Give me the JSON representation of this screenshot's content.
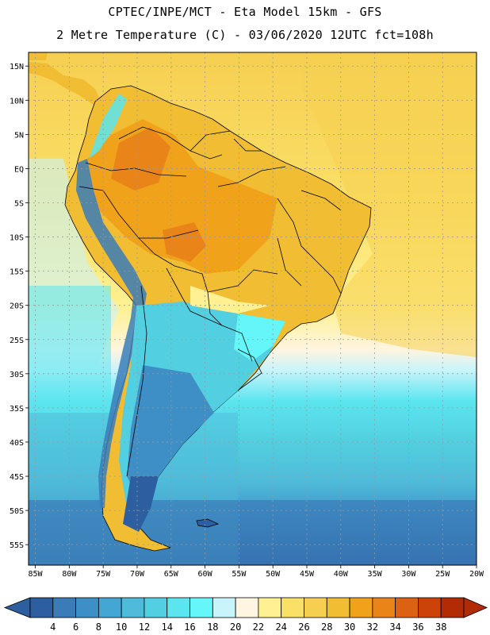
{
  "header": {
    "line1": "CPTEC/INPE/MCT -  Eta Model 15km - GFS",
    "line2": "2 Metre Temperature (C) - 03/06/2020 12UTC fct=108h"
  },
  "map": {
    "lon_labels": [
      "85W",
      "80W",
      "75W",
      "70W",
      "65W",
      "60W",
      "55W",
      "50W",
      "45W",
      "40W",
      "35W",
      "30W",
      "25W",
      "20W"
    ],
    "lat_labels": [
      "15N",
      "10N",
      "5N",
      "EQ",
      "5S",
      "10S",
      "15S",
      "20S",
      "25S",
      "30S",
      "35S",
      "40S",
      "45S",
      "50S",
      "55S"
    ],
    "lon_values": [
      -85,
      -80,
      -75,
      -70,
      -65,
      -60,
      -55,
      -50,
      -45,
      -40,
      -35,
      -30,
      -25,
      -20
    ],
    "lat_values": [
      15,
      10,
      5,
      0,
      -5,
      -10,
      -15,
      -20,
      -25,
      -30,
      -35,
      -40,
      -45,
      -50,
      -55
    ],
    "lon_range": [
      -86,
      -20
    ],
    "lat_range": [
      -58,
      17
    ],
    "field": "2 Metre Temperature",
    "units": "C"
  },
  "legend": {
    "ticks": [
      "4",
      "6",
      "8",
      "10",
      "12",
      "14",
      "16",
      "18",
      "20",
      "22",
      "24",
      "26",
      "28",
      "30",
      "32",
      "34",
      "36",
      "38"
    ],
    "colors": [
      "#2d5fa0",
      "#3a7cb8",
      "#3d8fc6",
      "#44a6d3",
      "#4fbad9",
      "#52cfe0",
      "#5be5ef",
      "#64f6f8",
      "#c8f4fb",
      "#fff5e0",
      "#fff192",
      "#fbe068",
      "#f6cf51",
      "#f0bd33",
      "#f0a21a",
      "#e98418",
      "#dd6112",
      "#cc4208",
      "#b22b05"
    ]
  }
}
